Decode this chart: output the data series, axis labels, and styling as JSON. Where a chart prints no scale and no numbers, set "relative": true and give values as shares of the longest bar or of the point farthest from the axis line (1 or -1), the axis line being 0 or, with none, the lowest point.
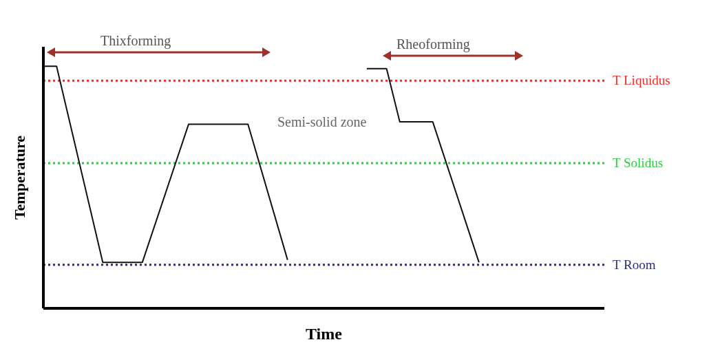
{
  "chart_data": {
    "type": "line",
    "relative": true,
    "xlabel": "Time",
    "ylabel": "Temperature",
    "marker": "none",
    "categories": [
      null,
      null,
      null,
      null,
      null,
      null,
      null,
      null,
      null,
      null,
      null,
      null,
      null,
      null,
      null,
      null,
      null,
      null,
      null,
      null,
      null,
      null,
      null,
      null,
      null,
      null,
      null,
      null,
      null,
      null,
      null,
      null,
      null,
      null,
      null,
      null,
      null,
      null,
      null,
      null,
      null,
      null,
      null,
      null,
      null,
      null,
      null,
      null,
      null,
      null,
      null,
      null,
      null,
      null,
      null,
      null,
      null,
      null,
      null,
      null,
      null,
      null,
      null,
      null,
      null,
      null,
      null,
      null,
      null,
      null,
      null,
      null,
      null,
      null,
      null,
      null,
      null,
      null,
      null,
      null,
      null,
      null,
      null,
      null,
      null,
      null
    ],
    "series": [
      {
        "color": "#111111",
        "values": [
          1,
          null,
          1,
          null,
          null,
          null,
          null,
          null,
          null,
          0.19,
          null,
          null,
          null,
          null,
          null,
          0.19,
          null,
          null,
          null,
          null,
          null,
          null,
          0.76,
          null,
          null,
          null,
          null,
          null,
          null,
          null,
          null,
          0.76,
          null,
          null,
          null,
          null,
          null,
          0.2,
          null,
          null,
          null,
          null,
          null,
          null,
          null,
          null,
          null,
          null,
          null,
          null,
          null,
          null,
          null,
          null,
          null,
          null,
          null,
          null,
          null,
          null,
          null,
          null,
          null,
          null,
          null,
          null,
          null,
          null,
          null,
          null,
          null,
          null,
          null,
          null,
          null,
          null,
          null,
          null,
          null,
          null,
          null,
          null,
          null,
          null,
          null,
          null
        ]
      },
      {
        "color": "#111111",
        "values": [
          null,
          null,
          null,
          null,
          null,
          null,
          null,
          null,
          null,
          null,
          null,
          null,
          null,
          null,
          null,
          null,
          null,
          null,
          null,
          null,
          null,
          null,
          null,
          null,
          null,
          null,
          null,
          null,
          null,
          null,
          null,
          null,
          null,
          null,
          null,
          null,
          null,
          null,
          null,
          null,
          null,
          null,
          null,
          null,
          null,
          null,
          null,
          null,
          null,
          0.99,
          null,
          null,
          0.99,
          null,
          0.77,
          null,
          null,
          null,
          null,
          0.77,
          null,
          null,
          null,
          null,
          null,
          null,
          0.19,
          null,
          null,
          null,
          null,
          null,
          null,
          null,
          null,
          null,
          null,
          null,
          null,
          null,
          null,
          null,
          null,
          null,
          null,
          null
        ]
      }
    ],
    "ref_lines": [
      {
        "axis": "y",
        "value": 0.94,
        "label": "T Liquidus",
        "color": "#e8302a",
        "line_style": "dotted"
      },
      {
        "axis": "y",
        "value": 0.6,
        "label": "T Solidus",
        "color": "#2ecc40",
        "line_style": "dotted"
      },
      {
        "axis": "y",
        "value": 0.18,
        "label": "T Room",
        "color": "#2a2a80",
        "line_style": "dotted"
      }
    ],
    "annotations": [
      "Thixforming",
      "Rheoforming",
      "Semi-solid zone"
    ]
  }
}
